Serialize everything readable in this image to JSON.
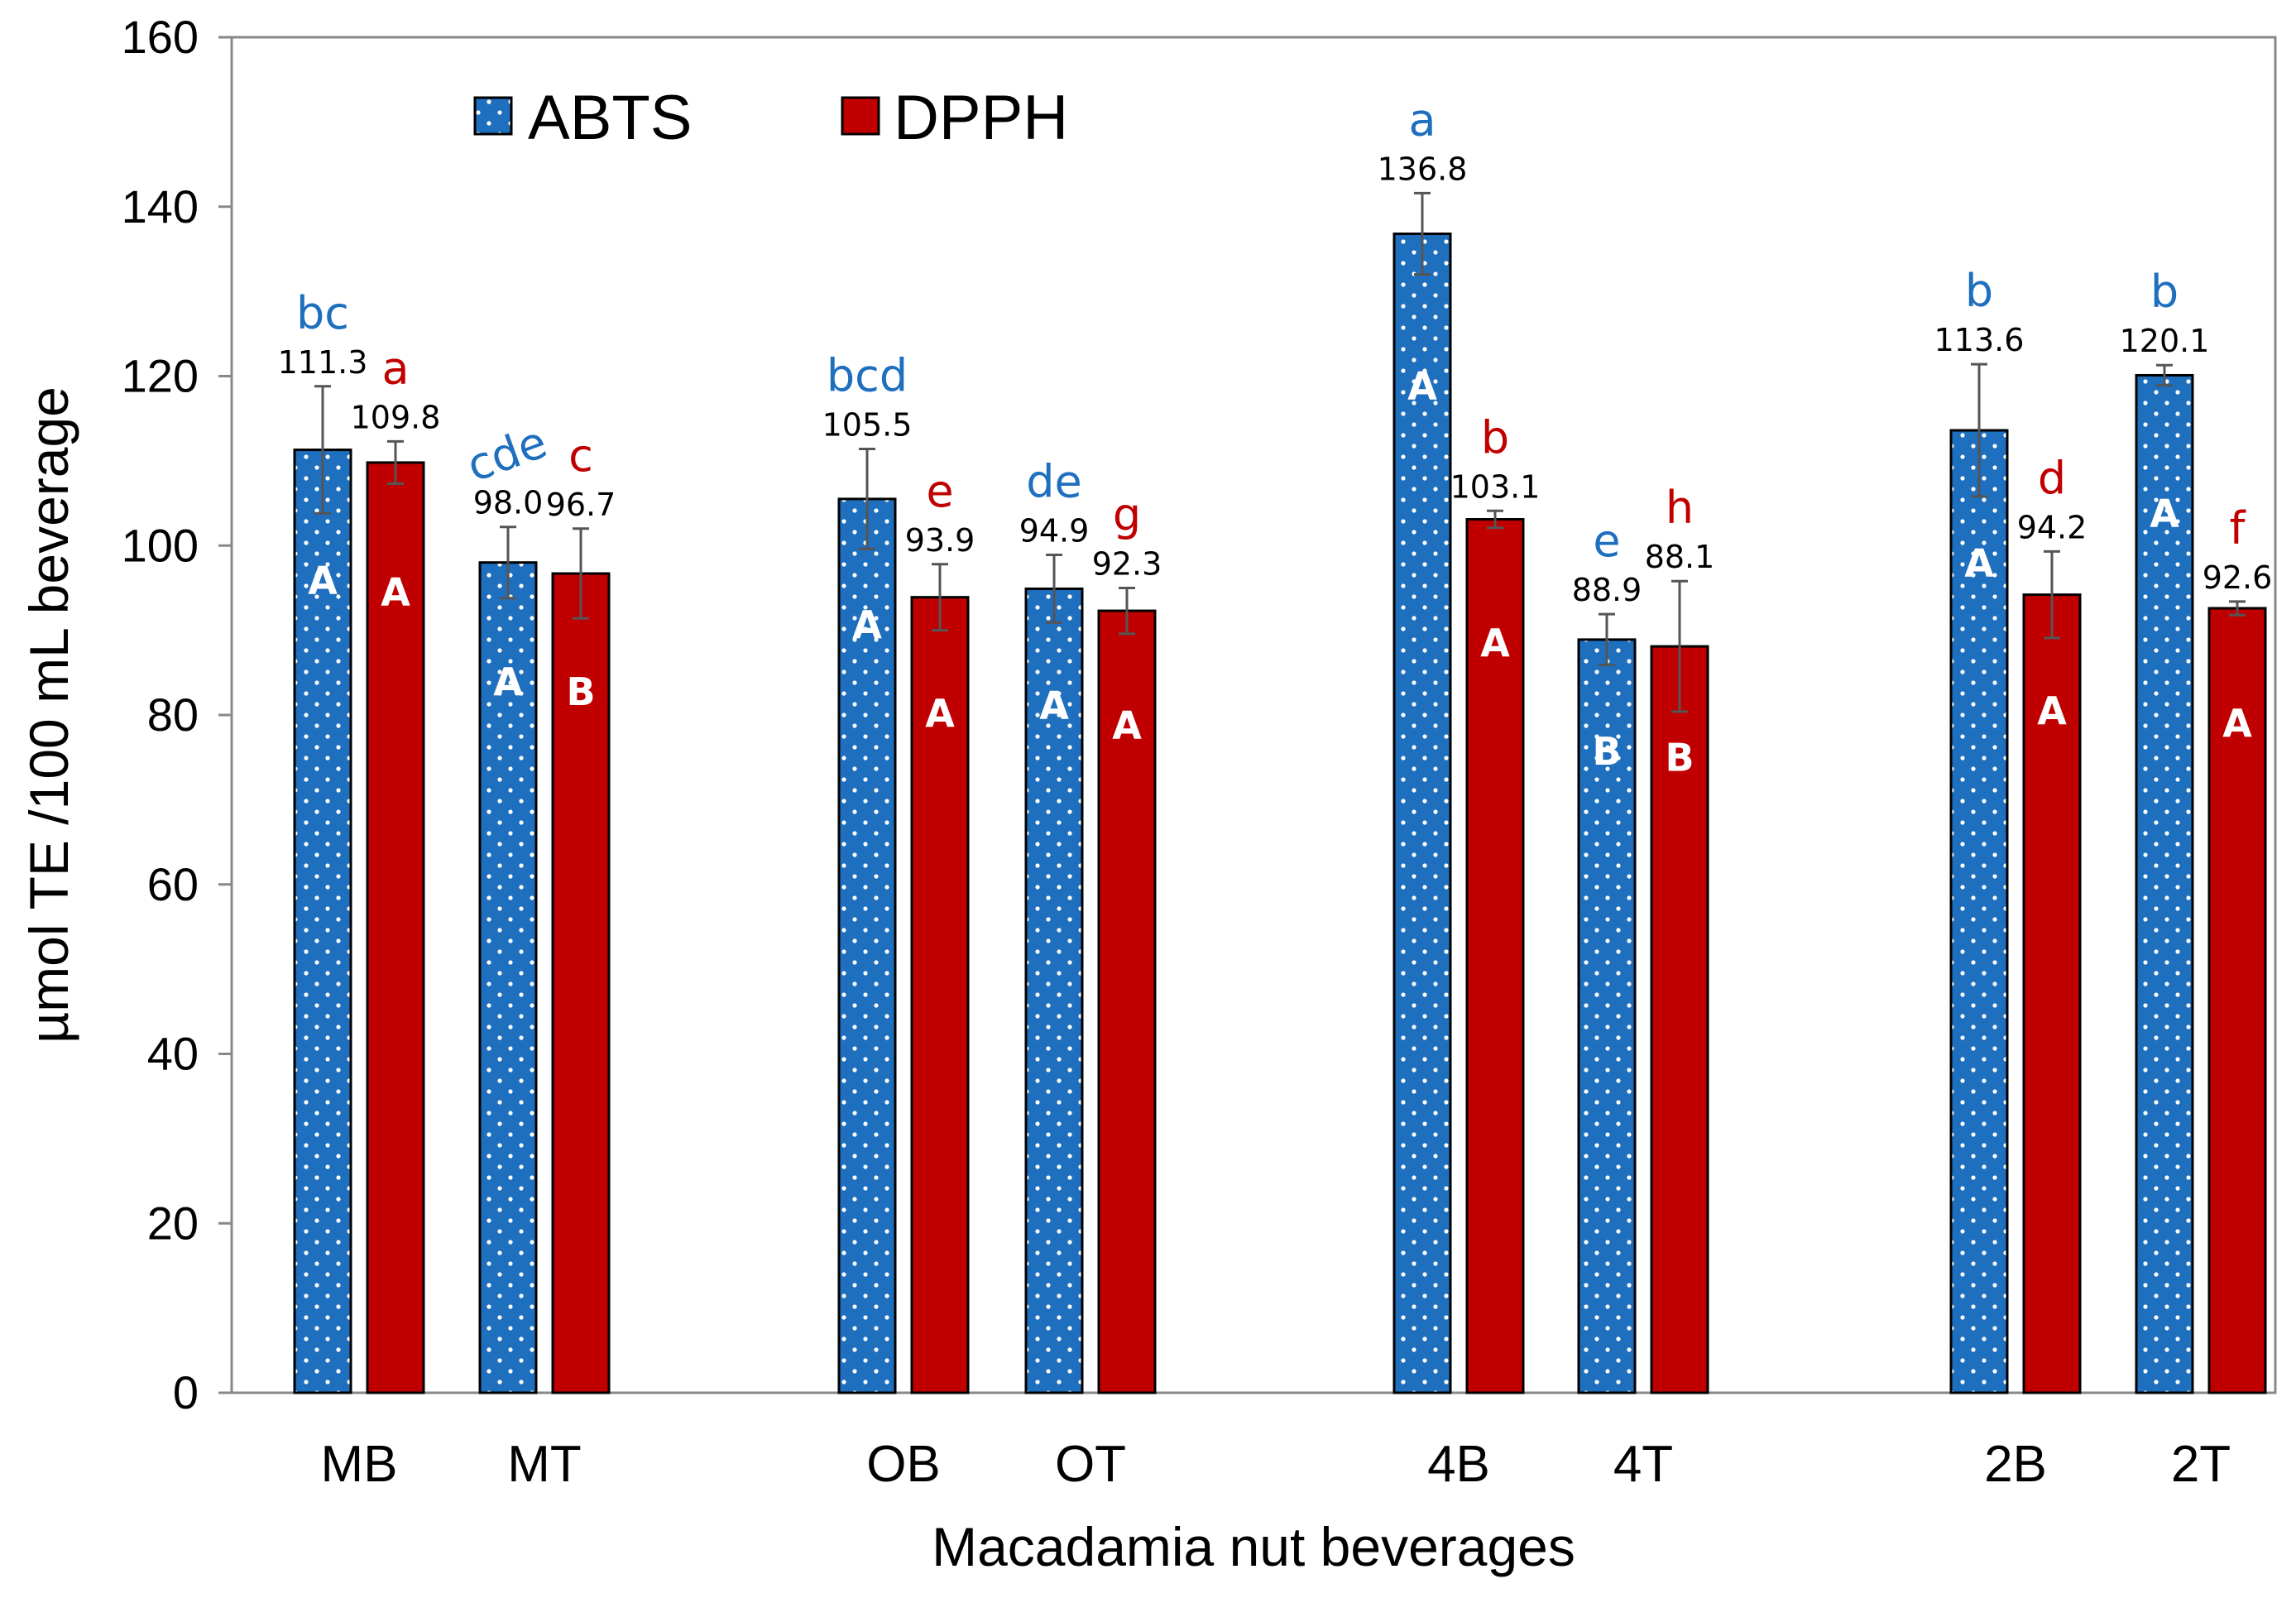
{
  "chart_data": {
    "type": "bar",
    "title": "",
    "xlabel": "Macadamia nut beverages",
    "ylabel": "µmol TE /100 mL beverage",
    "ylim": [
      0,
      160
    ],
    "yticks": [
      "0",
      "20",
      "40",
      "60",
      "80",
      "100",
      "120",
      "140",
      "160"
    ],
    "grid": false,
    "legend_position": "top-left",
    "categories": [
      "MB",
      "MT",
      "OB",
      "OT",
      "4B",
      "4T",
      "2B",
      "2T"
    ],
    "series": [
      {
        "name": "ABTS",
        "color": "#1f6fbf",
        "pattern": "white-dots",
        "values": [
          111.3,
          98.0,
          105.5,
          94.9,
          136.8,
          88.9,
          113.6,
          120.1
        ],
        "value_labels": [
          "111.3",
          "98.0",
          "105.5",
          "94.9",
          "136.8",
          "88.9",
          "113.6",
          "120.1"
        ],
        "error": [
          7.5,
          4.2,
          5.9,
          4.0,
          4.8,
          3.0,
          7.8,
          1.2
        ],
        "letters": [
          "bc",
          "cde",
          "bcd",
          "de",
          "a",
          "e",
          "b",
          "b"
        ],
        "letter_color": "#1f6fbf",
        "inbar_letters": [
          "A",
          "A",
          "A",
          "A",
          "A",
          "B",
          "A",
          "A"
        ]
      },
      {
        "name": "DPPH",
        "color": "#c00000",
        "pattern": "solid",
        "values": [
          109.8,
          96.7,
          93.9,
          92.3,
          103.1,
          88.1,
          94.2,
          92.6
        ],
        "value_labels": [
          "109.8",
          "96.7",
          "93.9",
          "92.3",
          "103.1",
          "88.1",
          "94.2",
          "92.6"
        ],
        "error": [
          2.5,
          5.3,
          3.9,
          2.7,
          1.0,
          7.7,
          5.1,
          0.8
        ],
        "letters": [
          "a",
          "c",
          "e",
          "g",
          "b",
          "h",
          "d",
          "f"
        ],
        "letter_color": "#c00000",
        "inbar_letters": [
          "A",
          "B",
          "A",
          "A",
          "A",
          "B",
          "A",
          "A"
        ]
      }
    ]
  }
}
